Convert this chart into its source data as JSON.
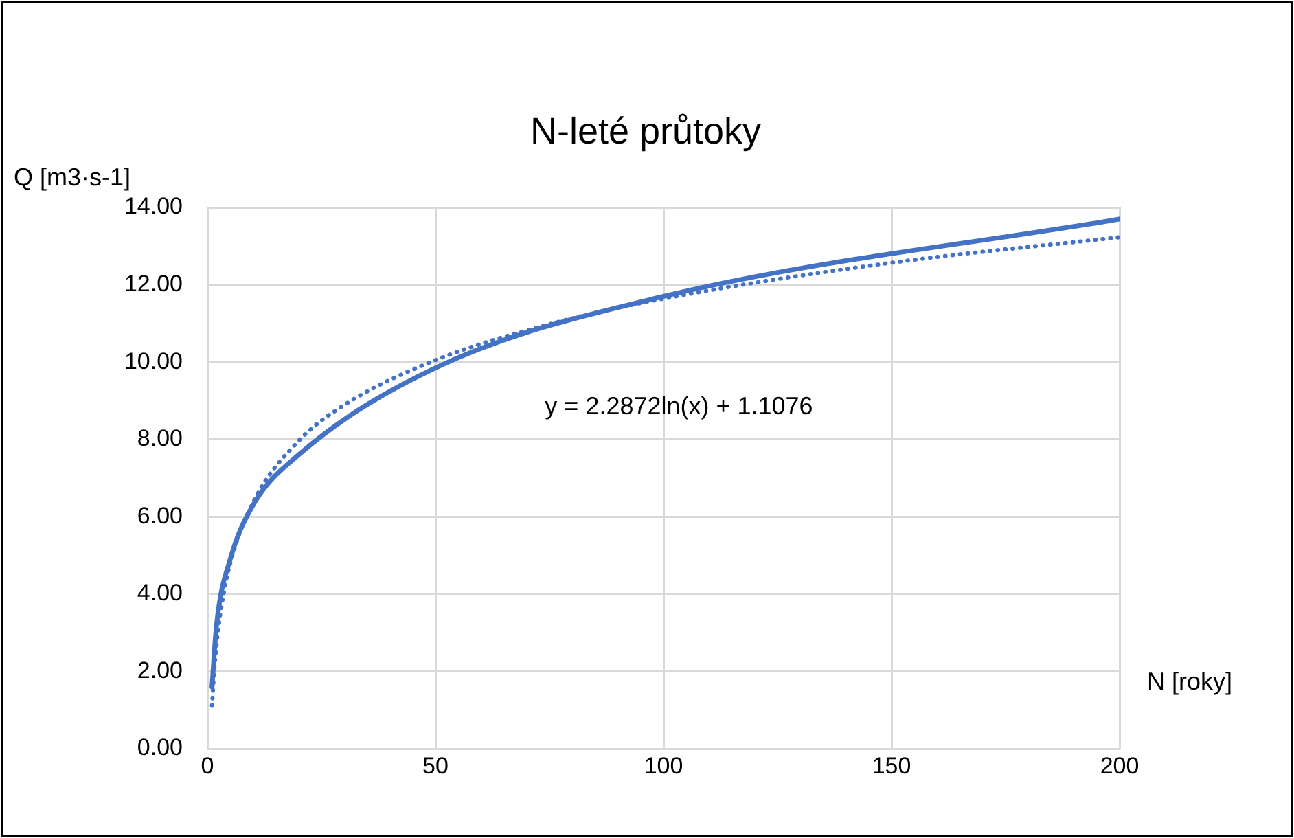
{
  "chart_data": {
    "type": "line",
    "title": "N-leté průtoky",
    "xlabel": "N [roky]",
    "ylabel": "Q [m3·s-1]",
    "series": [
      {
        "color": "#4472c4",
        "x": [
          1,
          2,
          5,
          10,
          20,
          50,
          100,
          200
        ],
        "values": [
          1.6,
          3.2,
          4.9,
          6.3,
          7.6,
          9.85,
          11.7,
          13.7
        ],
        "line_style": "solid"
      },
      {
        "type": "line",
        "color": "#4472c4",
        "x": [
          1,
          1.5,
          2,
          3,
          5,
          10,
          20,
          30,
          50,
          75,
          100,
          150,
          200
        ],
        "values": [
          1.11,
          2.03,
          2.69,
          3.62,
          4.79,
          6.37,
          7.96,
          8.89,
          10.05,
          10.98,
          11.64,
          12.57,
          13.23
        ],
        "line_style": "dotted"
      }
    ],
    "annotations": [
      "y = 2.2872ln(x) + 1.1076"
    ],
    "xlim": [
      0,
      200
    ],
    "xticks": [
      0,
      50,
      100,
      150,
      200
    ],
    "ylim": [
      0,
      14
    ],
    "yticks": [
      {
        "value": 0,
        "label": "0.00"
      },
      {
        "value": 2,
        "label": "2.00"
      },
      {
        "value": 4,
        "label": "4.00"
      },
      {
        "value": 6,
        "label": "6.00"
      },
      {
        "value": 8,
        "label": "8.00"
      },
      {
        "value": 10,
        "label": "10.00"
      },
      {
        "value": 12,
        "label": "12.00"
      },
      {
        "value": 14,
        "label": "14.00"
      }
    ],
    "grid": true,
    "legend": false,
    "marker": "none"
  }
}
